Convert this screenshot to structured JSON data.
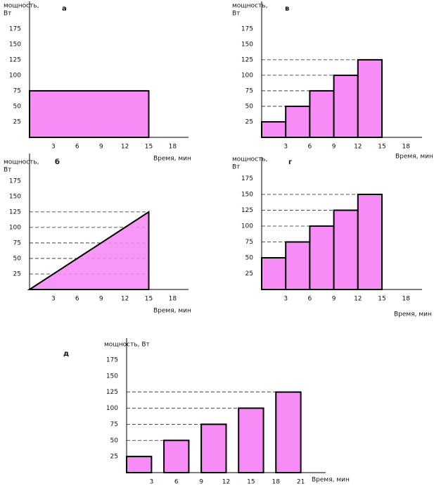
{
  "chart_data": [
    {
      "type": "step",
      "panel": "а",
      "y_label": [
        "мощность,",
        "Вт"
      ],
      "x_label": "Время, мин",
      "x": [
        0
      ],
      "x_end": [
        15
      ],
      "values": [
        75
      ],
      "color": "#f78cf7",
      "guides": false,
      "xlim": [
        0,
        20
      ],
      "ylim": [
        0,
        210
      ],
      "xticks": [
        3,
        6,
        9,
        12,
        15,
        18
      ],
      "yticks": [
        25,
        50,
        75,
        100,
        125,
        150,
        175
      ]
    },
    {
      "type": "step",
      "panel": "в",
      "y_label": [
        "мощность,",
        "Вт"
      ],
      "x_label": "Время, мин",
      "x": [
        0,
        3,
        6,
        9,
        12
      ],
      "x_end": [
        3,
        6,
        9,
        12,
        15
      ],
      "values": [
        25,
        50,
        75,
        100,
        125
      ],
      "color": "#f78cf7",
      "guides": true,
      "xlim": [
        0,
        20
      ],
      "ylim": [
        0,
        210
      ],
      "xticks": [
        3,
        6,
        9,
        12,
        15,
        18
      ],
      "yticks": [
        25,
        50,
        75,
        100,
        125,
        150,
        175
      ]
    },
    {
      "type": "area",
      "panel": "б",
      "y_label": [
        "мощность,",
        "Вт"
      ],
      "x_label": "Время, мин",
      "x": [
        0,
        15
      ],
      "values": [
        0,
        125
      ],
      "color": "#f78cf7",
      "guides": true,
      "xlim": [
        0,
        20
      ],
      "ylim": [
        0,
        210
      ],
      "xticks": [
        3,
        6,
        9,
        12,
        15,
        18
      ],
      "yticks": [
        25,
        50,
        75,
        100,
        125,
        150,
        175
      ]
    },
    {
      "type": "step",
      "panel": "г",
      "y_label": [
        "мощность,",
        "Вт"
      ],
      "x_label": "Время, мин",
      "x": [
        0,
        3,
        6,
        9,
        12
      ],
      "x_end": [
        3,
        6,
        9,
        12,
        15
      ],
      "values": [
        50,
        75,
        100,
        125,
        150
      ],
      "color": "#f78cf7",
      "guides": true,
      "xlim": [
        0,
        20
      ],
      "ylim": [
        0,
        200
      ],
      "xticks": [
        3,
        6,
        9,
        12,
        15,
        18
      ],
      "yticks": [
        25,
        50,
        75,
        100,
        125,
        150,
        175
      ]
    },
    {
      "type": "step",
      "panel": "д",
      "y_label": [
        "мощность, Вт"
      ],
      "x_label": "Время, мин",
      "x": [
        0,
        4.5,
        9,
        13.5,
        18
      ],
      "x_end": [
        3,
        7.5,
        12,
        16.5,
        21
      ],
      "values": [
        25,
        50,
        75,
        100,
        125
      ],
      "color": "#f78cf7",
      "guides": true,
      "xlim": [
        0,
        24
      ],
      "ylim": [
        0,
        200
      ],
      "xticks": [
        3,
        6,
        9,
        12,
        15,
        18,
        21
      ],
      "yticks": [
        25,
        50,
        75,
        100,
        125,
        150,
        175
      ]
    }
  ]
}
